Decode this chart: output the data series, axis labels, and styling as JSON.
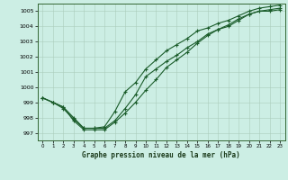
{
  "title": "Graphe pression niveau de la mer (hPa)",
  "background_color": "#cceee4",
  "grid_color": "#aaccbb",
  "line_color": "#1a5c2a",
  "xlim": [
    -0.5,
    23.5
  ],
  "ylim": [
    996.5,
    1005.5
  ],
  "yticks": [
    997,
    998,
    999,
    1000,
    1001,
    1002,
    1003,
    1004,
    1005
  ],
  "xtick_labels": [
    "0",
    "1",
    "2",
    "3",
    "4",
    "5",
    "6",
    "7",
    "8",
    "9",
    "10",
    "11",
    "12",
    "13",
    "14",
    "15",
    "16",
    "17",
    "18",
    "19",
    "20",
    "21",
    "22",
    "23"
  ],
  "line1_x": [
    0,
    1,
    2,
    3,
    4,
    5,
    6,
    7,
    8,
    9,
    10,
    11,
    12,
    13,
    14,
    15,
    16,
    17,
    18,
    19,
    20,
    21,
    22,
    23
  ],
  "line1_y": [
    999.3,
    999.0,
    998.7,
    998.0,
    997.3,
    997.3,
    997.3,
    997.8,
    998.6,
    999.5,
    1000.7,
    1001.2,
    1001.7,
    1002.1,
    1002.6,
    1003.0,
    1003.5,
    1003.8,
    1004.1,
    1004.5,
    1004.8,
    1005.0,
    1005.1,
    1005.2
  ],
  "line2_x": [
    0,
    1,
    2,
    3,
    4,
    5,
    6,
    7,
    8,
    9,
    10,
    11,
    12,
    13,
    14,
    15,
    16,
    17,
    18,
    19,
    20,
    21,
    22,
    23
  ],
  "line2_y": [
    999.3,
    999.0,
    998.7,
    997.8,
    997.2,
    997.2,
    997.2,
    997.7,
    998.3,
    999.0,
    999.8,
    1000.5,
    1001.3,
    1001.8,
    1002.3,
    1002.9,
    1003.4,
    1003.8,
    1004.0,
    1004.4,
    1004.8,
    1005.0,
    1005.0,
    1005.1
  ],
  "line3_x": [
    0,
    1,
    2,
    3,
    4,
    5,
    6,
    7,
    8,
    9,
    10,
    11,
    12,
    13,
    14,
    15,
    16,
    17,
    18,
    19,
    20,
    21,
    22,
    23
  ],
  "line3_y": [
    999.3,
    999.0,
    998.6,
    997.9,
    997.3,
    997.3,
    997.4,
    998.4,
    999.7,
    1000.3,
    1001.2,
    1001.8,
    1002.4,
    1002.8,
    1003.2,
    1003.7,
    1003.9,
    1004.2,
    1004.4,
    1004.7,
    1005.0,
    1005.2,
    1005.3,
    1005.4
  ]
}
